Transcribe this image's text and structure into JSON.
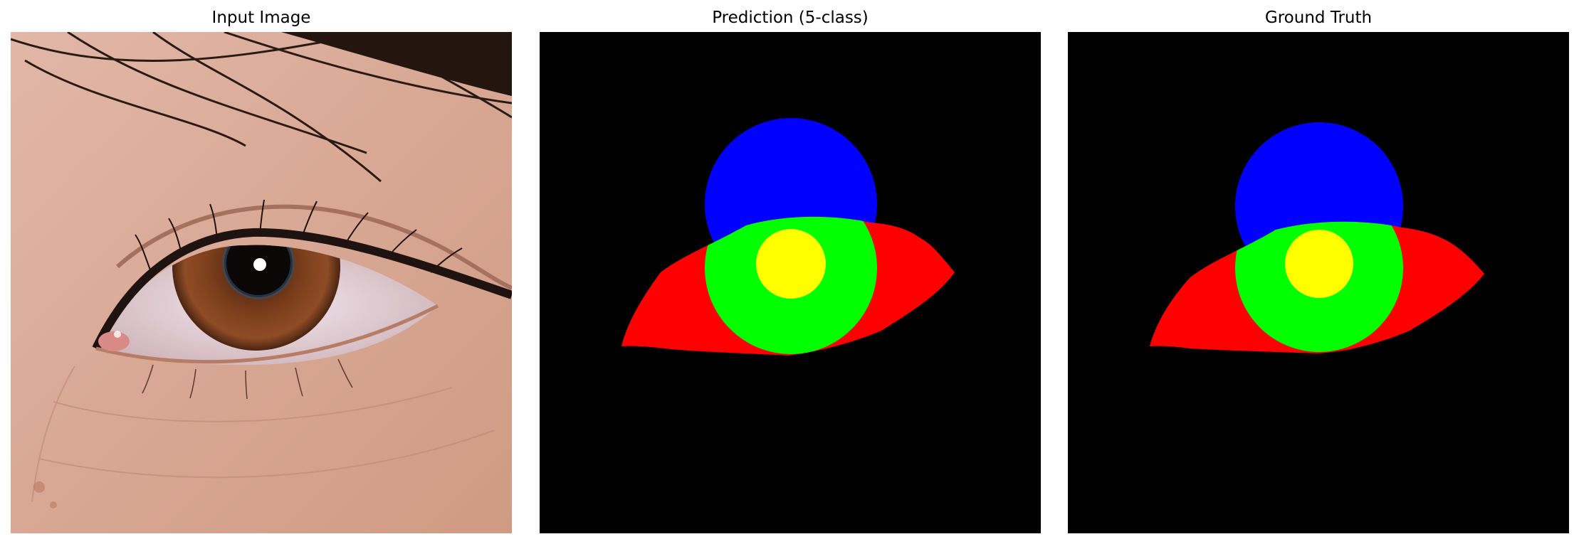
{
  "panels": [
    {
      "title": "Input Image"
    },
    {
      "title": "Prediction (5-class)"
    },
    {
      "title": "Ground Truth"
    }
  ],
  "colors": {
    "background": "#000000",
    "sclera": "#ff0000",
    "iris": "#00ff00",
    "pupil": "#ffff00",
    "occluded_iris": "#0000ff",
    "skin": "#d7a48f",
    "brow_hair": "#2a1a14"
  }
}
